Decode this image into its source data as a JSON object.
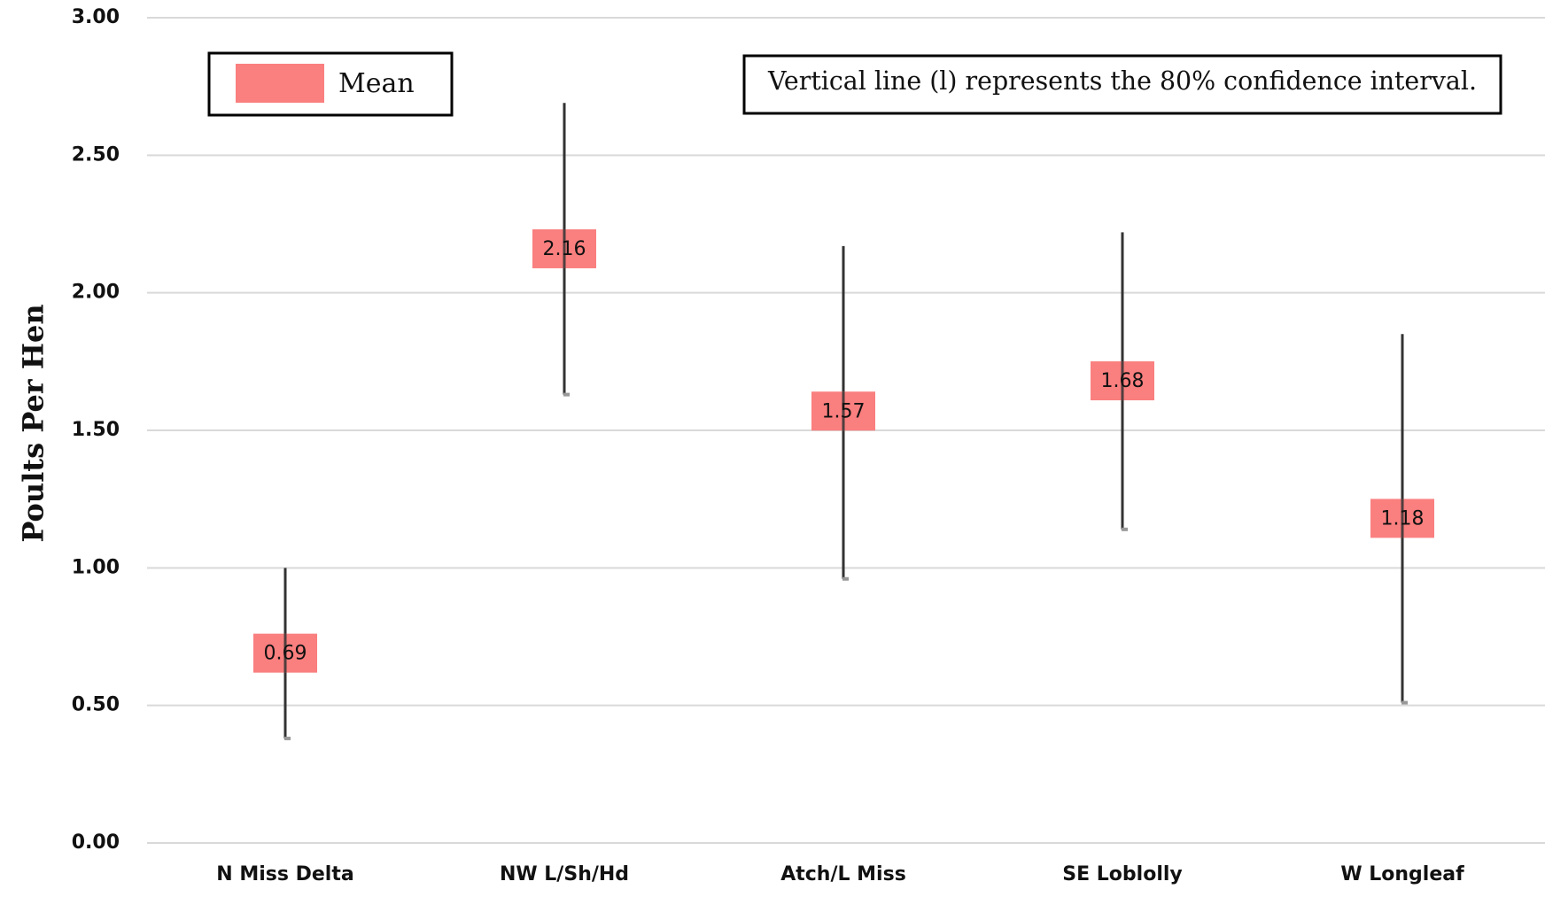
{
  "chart_data": {
    "type": "scatter",
    "title": "",
    "xlabel": "",
    "ylabel": "Poults Per Hen",
    "ylim": [
      0,
      3
    ],
    "yticks": [
      "0.00",
      "0.50",
      "1.00",
      "1.50",
      "2.00",
      "2.50",
      "3.00"
    ],
    "ytick_values": [
      0,
      0.5,
      1,
      1.5,
      2,
      2.5,
      3
    ],
    "grid": true,
    "categories": [
      "N Miss Delta",
      "NW L/Sh/Hd",
      "Atch/L Miss",
      "SE Loblolly",
      "W Longleaf"
    ],
    "series": [
      {
        "name": "Mean",
        "values": [
          0.69,
          2.16,
          1.57,
          1.68,
          1.18
        ],
        "labels": [
          "0.69",
          "2.16",
          "1.57",
          "1.68",
          "1.18"
        ],
        "ci_low": [
          0.38,
          1.63,
          0.96,
          1.14,
          0.51
        ],
        "ci_high": [
          1.0,
          2.69,
          2.17,
          2.22,
          1.85
        ]
      }
    ],
    "legend": {
      "position": "top-left",
      "entries": [
        "Mean"
      ]
    },
    "annotation": "Vertical line (l) represents the 80% confidence interval.",
    "colors": {
      "marker": "#fa7f7f",
      "ci_line": "#333333",
      "grid": "#d9d9d9"
    }
  }
}
